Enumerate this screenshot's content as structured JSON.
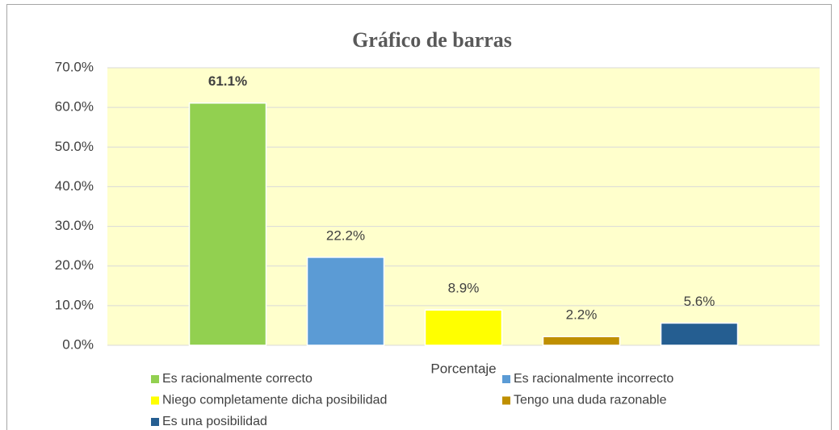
{
  "chart_data": {
    "type": "bar",
    "title": "Gráfico de barras",
    "categories": [
      "Porcentaje"
    ],
    "series": [
      {
        "name": "Es racionalmente correcto",
        "color": "#92d050",
        "values": [
          61.1
        ],
        "value_labels": [
          "61.1%"
        ]
      },
      {
        "name": "Es racionalmente incorrecto",
        "color": "#5b9bd5",
        "values": [
          22.2
        ],
        "value_labels": [
          "22.2%"
        ]
      },
      {
        "name": "Niego completamente dicha posibilidad",
        "color": "#ffff00",
        "values": [
          8.9
        ],
        "value_labels": [
          "8.9%"
        ]
      },
      {
        "name": "Tengo una duda razonable",
        "color": "#bf8f00",
        "values": [
          2.2
        ],
        "value_labels": [
          "2.2%"
        ]
      },
      {
        "name": "Es una posibilidad",
        "color": "#255e91",
        "values": [
          5.6
        ],
        "value_labels": [
          "5.6%"
        ]
      }
    ],
    "ylim": [
      0,
      70
    ],
    "yticks": [
      {
        "value": 0,
        "label": "0.0%"
      },
      {
        "value": 10,
        "label": "10.0%"
      },
      {
        "value": 20,
        "label": "20.0%"
      },
      {
        "value": 30,
        "label": "30.0%"
      },
      {
        "value": 40,
        "label": "40.0%"
      },
      {
        "value": 50,
        "label": "50.0%"
      },
      {
        "value": 60,
        "label": "60.0%"
      },
      {
        "value": 70,
        "label": "70.0%"
      }
    ],
    "grid": true,
    "legend": "bottom"
  }
}
